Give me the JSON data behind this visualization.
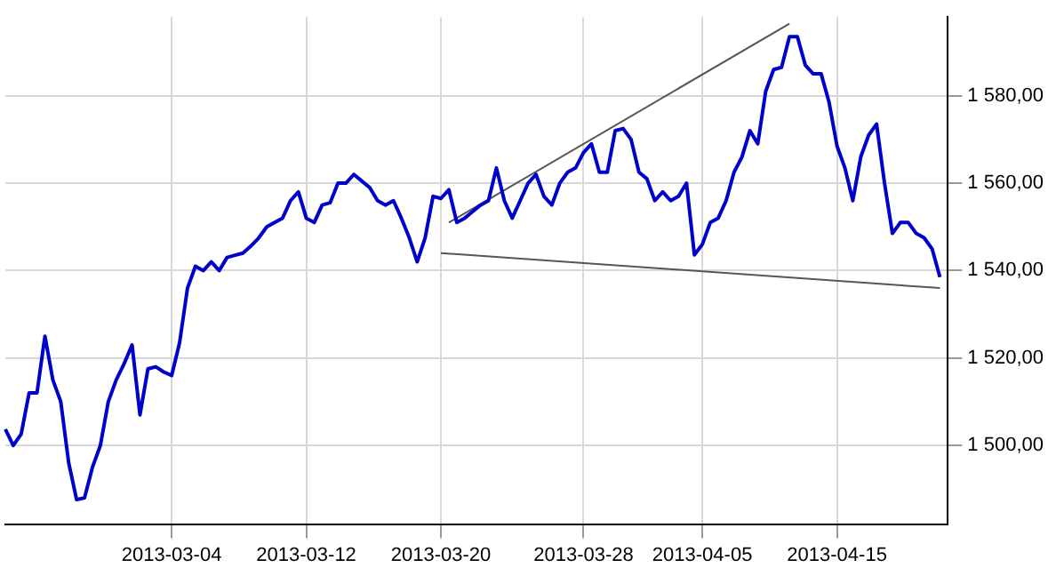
{
  "chart_data": {
    "type": "line",
    "categories": [
      null,
      null,
      null,
      null,
      null,
      null,
      null,
      null,
      null,
      null,
      null,
      null,
      null,
      null,
      null,
      null,
      null,
      null,
      null,
      null,
      null,
      "2013-03-04",
      null,
      null,
      null,
      null,
      null,
      null,
      null,
      null,
      null,
      null,
      null,
      null,
      null,
      null,
      null,
      null,
      "2013-03-12",
      null,
      null,
      null,
      null,
      null,
      null,
      null,
      null,
      null,
      null,
      null,
      null,
      null,
      null,
      null,
      null,
      "2013-03-20",
      null,
      null,
      null,
      null,
      null,
      null,
      null,
      null,
      null,
      null,
      null,
      null,
      null,
      null,
      null,
      null,
      null,
      "2013-03-28",
      null,
      null,
      null,
      null,
      null,
      null,
      null,
      null,
      null,
      null,
      null,
      null,
      null,
      null,
      "2013-04-05",
      null,
      null,
      null,
      null,
      null,
      null,
      null,
      null,
      null,
      null,
      null,
      null,
      null,
      null,
      null,
      null,
      "2013-04-15",
      null,
      null,
      null,
      null,
      null,
      null,
      null,
      null,
      null,
      null,
      null,
      null,
      null,
      null
    ],
    "series": [
      {
        "type": "line",
        "color": "#0000cc",
        "values": [
          1503.7,
          1500,
          1502.6,
          1512,
          1512,
          1525,
          1515,
          1510,
          1496,
          1487.6,
          1488,
          1495,
          1500,
          1510,
          1515,
          1518.7,
          1523,
          1507,
          1517.5,
          1518,
          1516.8,
          1516,
          1523.5,
          1536,
          1541,
          1540,
          1542,
          1540,
          1543,
          1543.5,
          1544,
          1545.6,
          1547.5,
          1550,
          1551,
          1552,
          1556,
          1558,
          1552,
          1551,
          1555,
          1555.5,
          1560,
          1560,
          1562,
          1560.5,
          1559,
          1556,
          1555,
          1556,
          1552,
          1547.5,
          1542,
          1547.5,
          1557,
          1556.5,
          1558.5,
          1551,
          1552,
          1553.5,
          1555,
          1556,
          1563.5,
          1556,
          1552,
          1556,
          1560,
          1562,
          1557,
          1555,
          1560,
          1562.5,
          1563.5,
          1567,
          1569,
          1562.5,
          1562.5,
          1572,
          1572.5,
          1570,
          1562.5,
          1561,
          1556,
          1558,
          1556,
          1557,
          1560,
          1543.6,
          1546,
          1551,
          1552,
          1556,
          1562.5,
          1566,
          1572,
          1569,
          1581,
          1586,
          1586.5,
          1593.5,
          1593.5,
          1587,
          1585,
          1585,
          1578.5,
          1568.5,
          1563.5,
          1556,
          1566,
          1571,
          1573.5,
          1560,
          1548.5,
          1551,
          1551,
          1548.5,
          1547.5,
          1545,
          1538.5,
          null
        ]
      },
      {
        "type": "line",
        "color": "#555555",
        "values": [
          null,
          null,
          null,
          null,
          null,
          null,
          null,
          null,
          null,
          null,
          null,
          null,
          null,
          null,
          null,
          null,
          null,
          null,
          null,
          null,
          null,
          null,
          null,
          null,
          null,
          null,
          null,
          null,
          null,
          null,
          null,
          null,
          null,
          null,
          null,
          null,
          null,
          null,
          null,
          null,
          null,
          null,
          null,
          null,
          null,
          null,
          null,
          null,
          null,
          null,
          null,
          null,
          null,
          null,
          null,
          null,
          1551,
          null,
          null,
          null,
          null,
          null,
          null,
          null,
          null,
          null,
          null,
          null,
          null,
          null,
          null,
          null,
          null,
          null,
          null,
          null,
          null,
          null,
          null,
          null,
          null,
          null,
          null,
          null,
          null,
          null,
          null,
          null,
          null,
          null,
          null,
          null,
          null,
          null,
          null,
          null,
          null,
          null,
          null,
          1596.5,
          null,
          null,
          null,
          null,
          null,
          null,
          null,
          null,
          null,
          null,
          null,
          null,
          null,
          null,
          null,
          null,
          null,
          null,
          null,
          null
        ]
      },
      {
        "type": "line",
        "color": "#555555",
        "values": [
          null,
          null,
          null,
          null,
          null,
          null,
          null,
          null,
          null,
          null,
          null,
          null,
          null,
          null,
          null,
          null,
          null,
          null,
          null,
          null,
          null,
          null,
          null,
          null,
          null,
          null,
          null,
          null,
          null,
          null,
          null,
          null,
          null,
          null,
          null,
          null,
          null,
          null,
          null,
          null,
          null,
          null,
          null,
          null,
          null,
          null,
          null,
          null,
          null,
          null,
          null,
          null,
          null,
          null,
          null,
          1544,
          null,
          null,
          null,
          null,
          null,
          null,
          null,
          null,
          null,
          null,
          null,
          null,
          null,
          null,
          null,
          null,
          null,
          null,
          null,
          null,
          null,
          null,
          null,
          null,
          null,
          null,
          null,
          null,
          null,
          null,
          null,
          null,
          null,
          null,
          null,
          null,
          null,
          null,
          null,
          null,
          null,
          null,
          null,
          null,
          null,
          null,
          null,
          null,
          null,
          null,
          null,
          null,
          null,
          null,
          null,
          null,
          null,
          null,
          null,
          null,
          null,
          null,
          1536,
          null
        ]
      }
    ],
    "ylim": [
      1482,
      1598
    ],
    "yticks": [
      {
        "value": 1500,
        "label": "1 500,00"
      },
      {
        "value": 1520,
        "label": "1 520,00"
      },
      {
        "value": 1540,
        "label": "1 540,00"
      },
      {
        "value": 1560,
        "label": "1 560,00"
      },
      {
        "value": 1580,
        "label": "1 580,00"
      }
    ],
    "grid": true,
    "marker": "none"
  }
}
